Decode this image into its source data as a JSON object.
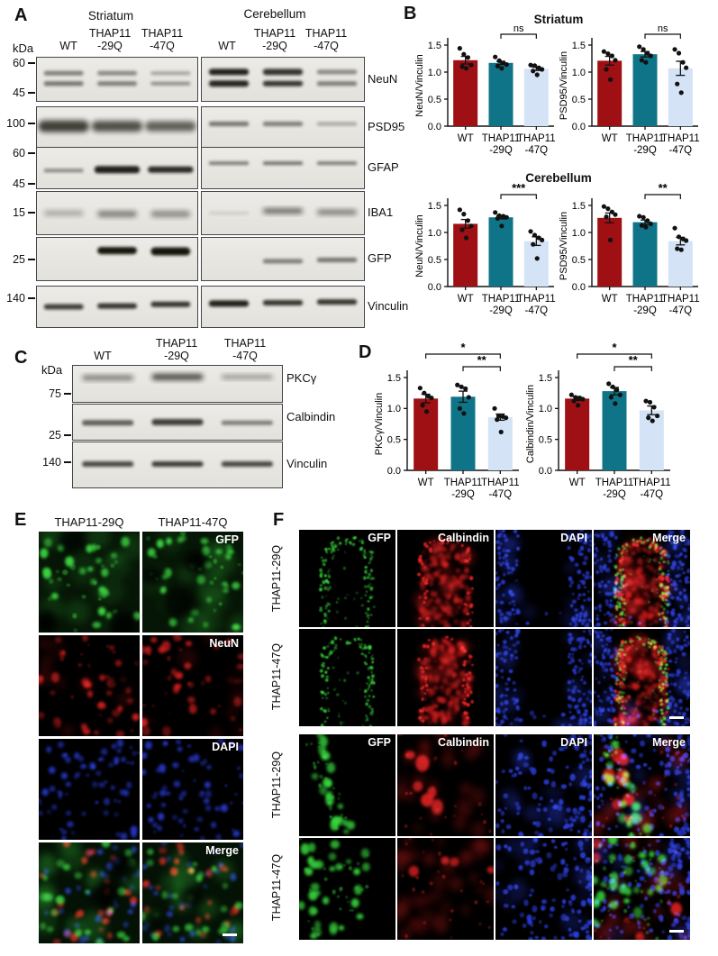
{
  "colors": {
    "bar_wt": "#9E1013",
    "bar_29q": "#0F7487",
    "bar_47q": "#D4E3F6",
    "dot": "#111111",
    "stain_green": "#38d63e",
    "stain_red": "#e22020",
    "stain_blue": "#2a3cdd"
  },
  "panel_a": {
    "letter": "A",
    "kda": "kDa",
    "group_headers": [
      "Striatum",
      "Cerebellum"
    ],
    "lane_labels": [
      "WT",
      "THAP11|-29Q",
      "THAP11|-47Q"
    ],
    "markers": [
      "60",
      "45",
      "100",
      "60",
      "45",
      "15",
      "25",
      "140"
    ],
    "rows": [
      {
        "protein": "NeuN",
        "left": [
          [
            {
              "y": 0.36,
              "h": 5,
              "i": 0.5
            },
            {
              "y": 0.6,
              "h": 5,
              "i": 0.55
            }
          ],
          [
            {
              "y": 0.36,
              "h": 5,
              "i": 0.45
            },
            {
              "y": 0.6,
              "h": 5,
              "i": 0.5
            }
          ],
          [
            {
              "y": 0.36,
              "h": 4,
              "i": 0.32
            },
            {
              "y": 0.6,
              "h": 4,
              "i": 0.42
            }
          ]
        ],
        "right": [
          [
            {
              "y": 0.33,
              "h": 7,
              "i": 0.95
            },
            {
              "y": 0.6,
              "h": 7,
              "i": 0.92
            }
          ],
          [
            {
              "y": 0.33,
              "h": 7,
              "i": 0.85
            },
            {
              "y": 0.6,
              "h": 6,
              "i": 0.85
            }
          ],
          [
            {
              "y": 0.33,
              "h": 5,
              "i": 0.45
            },
            {
              "y": 0.6,
              "h": 5,
              "i": 0.5
            }
          ]
        ]
      },
      {
        "protein": "PSD95",
        "left": [
          [
            {
              "y": 0.48,
              "h": 13,
              "i": 0.8,
              "w": 0.95,
              "s": 1
            }
          ],
          [
            {
              "y": 0.48,
              "h": 12,
              "i": 0.72,
              "w": 0.95,
              "s": 1
            }
          ],
          [
            {
              "y": 0.48,
              "h": 11,
              "i": 0.65,
              "w": 0.95,
              "s": 1
            }
          ]
        ],
        "right": [
          [
            {
              "y": 0.42,
              "h": 5,
              "i": 0.55
            }
          ],
          [
            {
              "y": 0.42,
              "h": 5,
              "i": 0.5
            }
          ],
          [
            {
              "y": 0.42,
              "h": 4,
              "i": 0.3
            }
          ]
        ]
      },
      {
        "protein": "GFAP",
        "left": [
          [
            {
              "y": 0.56,
              "h": 4,
              "i": 0.45
            }
          ],
          [
            {
              "y": 0.54,
              "h": 8,
              "i": 0.95,
              "w": 0.85
            }
          ],
          [
            {
              "y": 0.54,
              "h": 7,
              "i": 0.9,
              "w": 0.85
            }
          ]
        ],
        "right": [
          [
            {
              "y": 0.38,
              "h": 4,
              "i": 0.5
            }
          ],
          [
            {
              "y": 0.38,
              "h": 4,
              "i": 0.55
            }
          ],
          [
            {
              "y": 0.38,
              "h": 4,
              "i": 0.5
            }
          ]
        ]
      },
      {
        "protein": "IBA1",
        "left": [
          [
            {
              "y": 0.5,
              "h": 6,
              "i": 0.3,
              "s": 1
            }
          ],
          [
            {
              "y": 0.52,
              "h": 7,
              "i": 0.5,
              "s": 1
            }
          ],
          [
            {
              "y": 0.52,
              "h": 7,
              "i": 0.45,
              "s": 1
            }
          ]
        ],
        "right": [
          [
            {
              "y": 0.5,
              "h": 4,
              "i": 0.1
            }
          ],
          [
            {
              "y": 0.45,
              "h": 6,
              "i": 0.6,
              "s": 1
            }
          ],
          [
            {
              "y": 0.48,
              "h": 6,
              "i": 0.5,
              "s": 1
            }
          ]
        ]
      },
      {
        "protein": "GFP",
        "left": [
          [],
          [
            {
              "y": 0.3,
              "h": 8,
              "i": 1.0
            }
          ],
          [
            {
              "y": 0.32,
              "h": 9,
              "i": 1.0
            }
          ]
        ],
        "right": [
          [],
          [
            {
              "y": 0.55,
              "h": 5,
              "i": 0.5
            }
          ],
          [
            {
              "y": 0.52,
              "h": 5,
              "i": 0.55
            }
          ]
        ]
      },
      {
        "protein": "Vinculin",
        "left": [
          [
            {
              "y": 0.5,
              "h": 6,
              "i": 0.8
            }
          ],
          [
            {
              "y": 0.48,
              "h": 6,
              "i": 0.85
            }
          ],
          [
            {
              "y": 0.44,
              "h": 6,
              "i": 0.85
            }
          ]
        ],
        "right": [
          [
            {
              "y": 0.42,
              "h": 7,
              "i": 0.95
            }
          ],
          [
            {
              "y": 0.4,
              "h": 6,
              "i": 0.85
            }
          ],
          [
            {
              "y": 0.38,
              "h": 6,
              "i": 0.85
            }
          ]
        ]
      }
    ]
  },
  "panel_b": {
    "letter": "B",
    "sections": [
      {
        "title": "Striatum",
        "charts": [
          {
            "ylabel": "NeuN/Vinculin",
            "ylim": [
              0,
              1.5
            ],
            "yticks": [
              "0.0",
              "0.5",
              "1.0",
              "1.5"
            ],
            "categories": [
              "WT",
              "THAP11|-29Q",
              "THAP11|-47Q"
            ],
            "values": [
              1.22,
              1.17,
              1.06
            ],
            "errors": [
              0.07,
              0.03,
              0.03
            ],
            "points": [
              [
                1.44,
                1.33,
                1.27,
                1.13,
                1.1,
                1.07
              ],
              [
                1.28,
                1.21,
                1.17,
                1.14,
                1.11,
                1.07
              ],
              [
                1.13,
                1.12,
                1.08,
                1.05,
                1.02,
                0.95
              ]
            ],
            "sig": [
              {
                "a": 1,
                "b": 2,
                "label": "ns",
                "level": 0
              }
            ]
          },
          {
            "ylabel": "PSD95/Vinculin",
            "ylim": [
              0,
              1.5
            ],
            "yticks": [
              "0.0",
              "0.5",
              "1.0",
              "1.5"
            ],
            "categories": [
              "WT",
              "THAP11|-29Q",
              "THAP11|-47Q"
            ],
            "values": [
              1.21,
              1.33,
              1.07
            ],
            "errors": [
              0.08,
              0.05,
              0.13
            ],
            "points": [
              [
                1.38,
                1.34,
                1.3,
                1.22,
                1.05,
                0.86
              ],
              [
                1.47,
                1.42,
                1.35,
                1.3,
                1.22,
                1.18
              ],
              [
                1.42,
                1.35,
                1.18,
                1.08,
                0.78,
                0.62
              ]
            ],
            "sig": [
              {
                "a": 1,
                "b": 2,
                "label": "ns",
                "level": 0
              }
            ]
          }
        ]
      },
      {
        "title": "Cerebellum",
        "charts": [
          {
            "ylabel": "NeuN/Vinculin",
            "ylim": [
              0,
              1.5
            ],
            "yticks": [
              "0.0",
              "0.5",
              "1.0",
              "1.5"
            ],
            "categories": [
              "WT",
              "THAP11|-29Q",
              "THAP11|-47Q"
            ],
            "values": [
              1.16,
              1.28,
              0.84
            ],
            "errors": [
              0.08,
              0.03,
              0.08
            ],
            "points": [
              [
                1.42,
                1.34,
                1.22,
                1.12,
                1.05,
                0.9
              ],
              [
                1.37,
                1.31,
                1.3,
                1.28,
                1.26,
                1.12
              ],
              [
                1.02,
                0.95,
                0.9,
                0.86,
                0.78,
                0.52
              ]
            ],
            "sig": [
              {
                "a": 1,
                "b": 2,
                "label": "***",
                "level": 0
              }
            ]
          },
          {
            "ylabel": "PSD95/Vinculin",
            "ylim": [
              0,
              1.5
            ],
            "yticks": [
              "0.0",
              "0.5",
              "1.0",
              "1.5"
            ],
            "categories": [
              "WT",
              "THAP11|-29Q",
              "THAP11|-47Q"
            ],
            "values": [
              1.27,
              1.19,
              0.84
            ],
            "errors": [
              0.09,
              0.04,
              0.07
            ],
            "points": [
              [
                1.48,
                1.44,
                1.38,
                1.33,
                1.29,
                0.86
              ],
              [
                1.3,
                1.28,
                1.22,
                1.16,
                1.13,
                1.1
              ],
              [
                1.08,
                0.92,
                0.88,
                0.85,
                0.7,
                0.68
              ]
            ],
            "sig": [
              {
                "a": 1,
                "b": 2,
                "label": "**",
                "level": 0
              }
            ]
          }
        ]
      }
    ]
  },
  "panel_c": {
    "letter": "C",
    "kda": "kDa",
    "lane_labels": [
      "WT",
      "THAP11|-29Q",
      "THAP11|-47Q"
    ],
    "markers": [
      "75",
      "25",
      "140"
    ],
    "rows": [
      {
        "protein": "PKCγ",
        "lanes": [
          [
            {
              "y": 0.33,
              "h": 6,
              "i": 0.5,
              "s": 1
            }
          ],
          [
            {
              "y": 0.31,
              "h": 7,
              "i": 0.75,
              "s": 1
            }
          ],
          [
            {
              "y": 0.31,
              "h": 5,
              "i": 0.4,
              "s": 1
            }
          ]
        ]
      },
      {
        "protein": "Calbindin",
        "lanes": [
          [
            {
              "y": 0.52,
              "h": 6,
              "i": 0.65
            }
          ],
          [
            {
              "y": 0.5,
              "h": 7,
              "i": 0.8
            }
          ],
          [
            {
              "y": 0.52,
              "h": 5,
              "i": 0.5
            }
          ]
        ]
      },
      {
        "protein": "Vinculin",
        "lanes": [
          [
            {
              "y": 0.48,
              "h": 6,
              "i": 0.75
            }
          ],
          [
            {
              "y": 0.48,
              "h": 6,
              "i": 0.8
            }
          ],
          [
            {
              "y": 0.48,
              "h": 6,
              "i": 0.75
            }
          ]
        ]
      }
    ]
  },
  "panel_d": {
    "letter": "D",
    "charts": [
      {
        "ylabel": "PKCγ/Vinculin",
        "ylim": [
          0,
          1.5
        ],
        "yticks": [
          "0.0",
          "0.5",
          "1.0",
          "1.5"
        ],
        "categories": [
          "WT",
          "THAP11|-29Q",
          "THAP11|-47Q"
        ],
        "values": [
          1.16,
          1.19,
          0.86
        ],
        "errors": [
          0.07,
          0.09,
          0.05
        ],
        "points": [
          [
            1.33,
            1.25,
            1.2,
            1.17,
            1.05,
            0.95
          ],
          [
            1.38,
            1.35,
            1.32,
            1.18,
            1.0,
            0.92
          ],
          [
            1.0,
            0.88,
            0.87,
            0.85,
            0.82,
            0.62
          ]
        ],
        "sig": [
          {
            "a": 1,
            "b": 2,
            "label": "**",
            "level": 0
          },
          {
            "a": 0,
            "b": 2,
            "label": "*",
            "level": 1
          }
        ]
      },
      {
        "ylabel": "Calbindin/Vinculin",
        "ylim": [
          0,
          1.5
        ],
        "yticks": [
          "0.0",
          "0.5",
          "1.0",
          "1.5"
        ],
        "categories": [
          "WT",
          "THAP11|-29Q",
          "THAP11|-47Q"
        ],
        "values": [
          1.16,
          1.28,
          0.97
        ],
        "errors": [
          0.03,
          0.06,
          0.07
        ],
        "points": [
          [
            1.22,
            1.18,
            1.17,
            1.15,
            1.12,
            1.05
          ],
          [
            1.4,
            1.35,
            1.3,
            1.22,
            1.18,
            1.08
          ],
          [
            1.12,
            1.1,
            1.02,
            0.88,
            0.85,
            0.8
          ]
        ],
        "sig": [
          {
            "a": 1,
            "b": 2,
            "label": "**",
            "level": 0
          },
          {
            "a": 0,
            "b": 2,
            "label": "*",
            "level": 1
          }
        ]
      }
    ]
  },
  "panel_e": {
    "letter": "E",
    "col_headers": [
      "THAP11-29Q",
      "THAP11-47Q"
    ],
    "rows": [
      {
        "label": "GFP",
        "preset": "e_gfp",
        "seeds": [
          101,
          102
        ]
      },
      {
        "label": "NeuN",
        "preset": "e_neun",
        "seeds": [
          103,
          104
        ]
      },
      {
        "label": "DAPI",
        "preset": "e_dapi",
        "seeds": [
          105,
          106
        ]
      },
      {
        "label": "Merge",
        "preset": "e_merge",
        "seeds": [
          107,
          108
        ]
      }
    ]
  },
  "panel_f": {
    "letter": "F",
    "blocks": [
      {
        "row_labels": [
          "THAP11-29Q",
          "THAP11-47Q"
        ],
        "col_labels": [
          "GFP",
          "Calbindin",
          "DAPI",
          "Merge"
        ],
        "tiles": [
          [
            {
              "preset": "f1_gfp",
              "seed": 11
            },
            {
              "preset": "f1_calb",
              "seed": 12
            },
            {
              "preset": "f1_dapi",
              "seed": 13
            },
            {
              "preset": "f1_merge",
              "seed": 14
            }
          ],
          [
            {
              "preset": "f1_gfp",
              "seed": 21
            },
            {
              "preset": "f1_calb",
              "seed": 22
            },
            {
              "preset": "f1_dapi",
              "seed": 23
            },
            {
              "preset": "f1_merge",
              "seed": 24
            }
          ]
        ]
      },
      {
        "row_labels": [
          "THAP11-29Q",
          "THAP11-47Q"
        ],
        "col_labels": [
          "GFP",
          "Calbindin",
          "DAPI",
          "Merge"
        ],
        "tiles": [
          [
            {
              "preset": "f2_gfp29",
              "seed": 31
            },
            {
              "preset": "f2_calb29",
              "seed": 32
            },
            {
              "preset": "f2_dapi",
              "seed": 33
            },
            {
              "preset": "f2_merge29",
              "seed": 34
            }
          ],
          [
            {
              "preset": "f2_gfp47",
              "seed": 41
            },
            {
              "preset": "f2_calb47",
              "seed": 42
            },
            {
              "preset": "f2_dapi",
              "seed": 43
            },
            {
              "preset": "f2_merge47",
              "seed": 44
            }
          ]
        ]
      }
    ]
  }
}
